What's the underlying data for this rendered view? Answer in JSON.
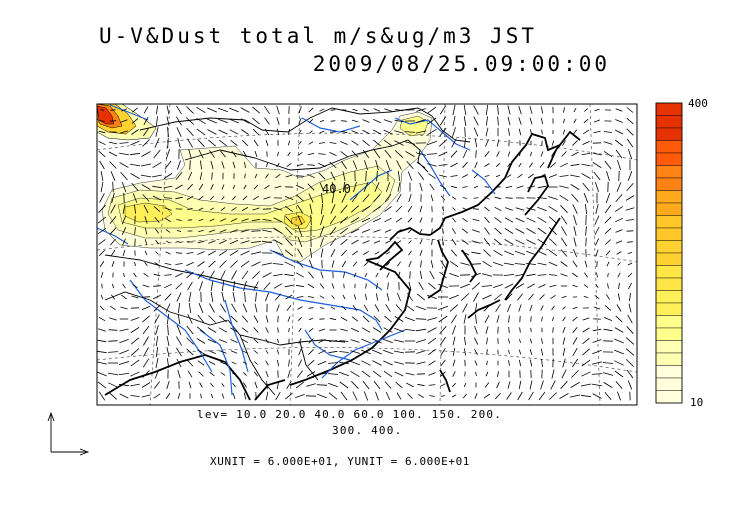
{
  "title": {
    "line1": "U-V&Dust total m/s&ug/m3 JST",
    "line2": "2009/08/25.09:00:00"
  },
  "legend": {
    "levels_line1": "lev= 10.0 20.0 40.0 60.0 100. 150. 200.",
    "levels_line2": "300. 400.",
    "units": "XUNIT = 6.000E+01, YUNIT = 6.000E+01",
    "colorbar_max": "400",
    "colorbar_min": "10",
    "contour_label": "40.0"
  },
  "colors": {
    "coast": "#000000",
    "river": "#1f5fd8",
    "border": "#000000",
    "vector": "#000000",
    "levels": [
      "#ffffdc",
      "#ffffb4",
      "#ffff8c",
      "#fff05a",
      "#ffd232",
      "#ffaa1e",
      "#ff8214",
      "#ff5a0a",
      "#e63200"
    ]
  },
  "icons": {
    "axis_arrows": "unit-vector-reference-icon"
  }
}
